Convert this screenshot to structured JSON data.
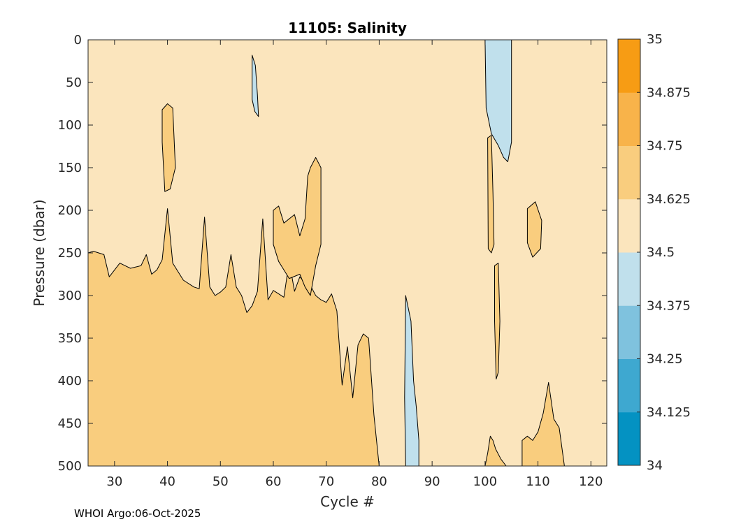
{
  "chart_data": {
    "type": "filled-contour",
    "title": "11105:  Salinity",
    "xlabel": "Cycle #",
    "ylabel": "Pressure (dbar)",
    "xlim": [
      25,
      123
    ],
    "ylim": [
      0,
      500
    ],
    "y_reversed": true,
    "x_ticks": [
      30,
      40,
      50,
      60,
      70,
      80,
      90,
      100,
      110,
      120
    ],
    "y_ticks": [
      0,
      50,
      100,
      150,
      200,
      250,
      300,
      350,
      400,
      450,
      500
    ],
    "colorbar": {
      "levels": [
        34,
        34.125,
        34.25,
        34.375,
        34.5,
        34.625,
        34.75,
        34.875,
        35
      ],
      "tick_labels": [
        "34",
        "34.125",
        "34.25",
        "34.375",
        "34.5",
        "34.625",
        "34.75",
        "34.875",
        "35"
      ],
      "colors": [
        "#0492c2",
        "#3ea8d0",
        "#7fc2de",
        "#c0e0ec",
        "#fbe5bd",
        "#f9cd7e",
        "#f8b34a",
        "#f79c14"
      ]
    },
    "background_class": "34.5-34.625",
    "regions": [
      {
        "class": "34.625-34.75",
        "description": "deep layer below ~250-350 dbar, cycles 25-80",
        "boundary": [
          [
            25,
            250
          ],
          [
            26,
            248
          ],
          [
            28,
            252
          ],
          [
            29,
            278
          ],
          [
            31,
            262
          ],
          [
            33,
            268
          ],
          [
            35,
            265
          ],
          [
            36,
            252
          ],
          [
            37,
            275
          ],
          [
            38,
            270
          ],
          [
            39,
            258
          ],
          [
            40,
            198
          ],
          [
            41,
            262
          ],
          [
            43,
            282
          ],
          [
            45,
            290
          ],
          [
            46,
            292
          ],
          [
            47,
            208
          ],
          [
            48,
            290
          ],
          [
            49,
            300
          ],
          [
            50,
            296
          ],
          [
            51,
            290
          ],
          [
            52,
            252
          ],
          [
            53,
            290
          ],
          [
            54,
            300
          ],
          [
            55,
            320
          ],
          [
            56,
            312
          ],
          [
            57,
            295
          ],
          [
            58,
            210
          ],
          [
            59,
            305
          ],
          [
            60,
            294
          ],
          [
            61,
            298
          ],
          [
            62,
            302
          ],
          [
            63,
            260
          ],
          [
            64,
            295
          ],
          [
            65,
            278
          ],
          [
            66,
            285
          ],
          [
            67,
            288
          ],
          [
            68,
            300
          ],
          [
            69,
            305
          ],
          [
            70,
            308
          ],
          [
            71,
            298
          ],
          [
            72,
            318
          ],
          [
            73,
            405
          ],
          [
            74,
            360
          ],
          [
            75,
            420
          ],
          [
            76,
            358
          ],
          [
            77,
            345
          ],
          [
            78,
            350
          ],
          [
            79,
            440
          ],
          [
            80,
            500
          ],
          [
            25,
            500
          ]
        ]
      },
      {
        "class": "34.625-34.75",
        "description": "mid-depth lens, cycles 38-41",
        "boundary": [
          [
            39,
            82
          ],
          [
            40,
            75
          ],
          [
            41,
            80
          ],
          [
            41.5,
            150
          ],
          [
            40.5,
            175
          ],
          [
            39.5,
            178
          ],
          [
            39,
            120
          ]
        ]
      },
      {
        "class": "34.625-34.75",
        "description": "streaks cycles 60-67",
        "boundary": [
          [
            60,
            200
          ],
          [
            61,
            195
          ],
          [
            62,
            215
          ],
          [
            64,
            205
          ],
          [
            65,
            230
          ],
          [
            66,
            210
          ],
          [
            66.5,
            160
          ],
          [
            67,
            150
          ],
          [
            68,
            138
          ],
          [
            69,
            150
          ],
          [
            69,
            240
          ],
          [
            68,
            265
          ],
          [
            67,
            300
          ],
          [
            66,
            290
          ],
          [
            65,
            275
          ],
          [
            63,
            280
          ],
          [
            61,
            260
          ],
          [
            60,
            240
          ]
        ]
      },
      {
        "class": "34.625-34.75",
        "description": "lens near cycle 101",
        "boundary": [
          [
            100.5,
            115
          ],
          [
            101.2,
            112
          ],
          [
            101.5,
            180
          ],
          [
            101.7,
            240
          ],
          [
            101.2,
            250
          ],
          [
            100.6,
            245
          ]
        ]
      },
      {
        "class": "34.625-34.75",
        "description": "lens near cycles 108-111",
        "boundary": [
          [
            108,
            198
          ],
          [
            109.5,
            190
          ],
          [
            110.7,
            212
          ],
          [
            110.5,
            245
          ],
          [
            109,
            255
          ],
          [
            108,
            238
          ]
        ]
      },
      {
        "class": "34.625-34.75",
        "description": "bottom patch cycles 107-114",
        "boundary": [
          [
            107,
            470
          ],
          [
            108,
            465
          ],
          [
            109,
            470
          ],
          [
            110,
            460
          ],
          [
            111,
            438
          ],
          [
            112,
            402
          ],
          [
            113,
            445
          ],
          [
            114,
            455
          ],
          [
            115,
            500
          ],
          [
            107,
            500
          ]
        ]
      },
      {
        "class": "34.625-34.75",
        "description": "bottom patch cycles 100-104",
        "boundary": [
          [
            100,
            500
          ],
          [
            100.5,
            485
          ],
          [
            101,
            465
          ],
          [
            101.5,
            470
          ],
          [
            102,
            480
          ],
          [
            103,
            492
          ],
          [
            104,
            500
          ]
        ]
      },
      {
        "class": "34.625-34.75",
        "description": "thin column cycle 102",
        "boundary": [
          [
            101.8,
            265
          ],
          [
            102.5,
            262
          ],
          [
            102.8,
            330
          ],
          [
            102.5,
            390
          ],
          [
            102.1,
            398
          ],
          [
            101.8,
            330
          ]
        ]
      },
      {
        "class": "34.375-34.5",
        "description": "fresh column cycles 100-105",
        "boundary": [
          [
            100,
            0
          ],
          [
            105,
            0
          ],
          [
            105,
            120
          ],
          [
            104.3,
            143
          ],
          [
            103.5,
            138
          ],
          [
            102.5,
            124
          ],
          [
            101.2,
            110
          ],
          [
            100.2,
            80
          ]
        ]
      },
      {
        "class": "34.375-34.5",
        "description": "fresh column cycles 84-87",
        "boundary": [
          [
            85,
            300
          ],
          [
            86,
            330
          ],
          [
            86.5,
            400
          ],
          [
            87,
            430
          ],
          [
            87.5,
            470
          ],
          [
            87.5,
            500
          ],
          [
            85,
            500
          ],
          [
            84.8,
            420
          ]
        ]
      },
      {
        "class": "34.375-34.5",
        "description": "fresh lens cycles 56-57",
        "boundary": [
          [
            56,
            18
          ],
          [
            56.6,
            30
          ],
          [
            57,
            65
          ],
          [
            57.2,
            90
          ],
          [
            56.5,
            84
          ],
          [
            56,
            70
          ]
        ]
      }
    ]
  },
  "footer": {
    "text": "WHOI Argo:06-Oct-2025"
  }
}
